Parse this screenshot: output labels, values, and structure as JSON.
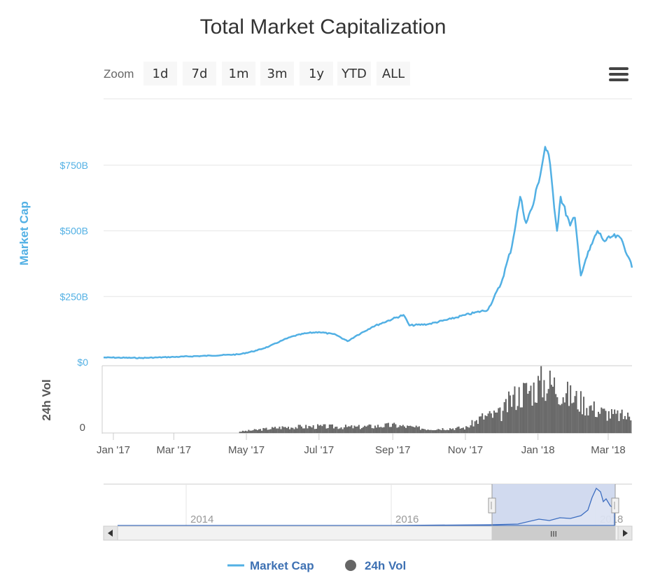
{
  "chart_data": {
    "type": "line",
    "title": "Total Market Capitalization",
    "zoom": {
      "label": "Zoom",
      "buttons": [
        "1d",
        "7d",
        "1m",
        "3m",
        "1y",
        "YTD",
        "ALL"
      ]
    },
    "y_axis": {
      "label": "Market Cap",
      "ticks": [
        "$0",
        "$250B",
        "$500B",
        "$750B"
      ],
      "ylim": [
        0,
        1000
      ]
    },
    "volume_axis": {
      "label": "24h Vol",
      "ticks": [
        "0"
      ]
    },
    "x_axis": {
      "ticks": [
        "Jan '17",
        "Mar '17",
        "May '17",
        "Jul '17",
        "Sep '17",
        "Nov '17",
        "Jan '18",
        "Mar '18"
      ],
      "range": [
        "2017-01-01",
        "2018-03-21"
      ]
    },
    "series": [
      {
        "name": "Market Cap",
        "color": "#52b0e4",
        "x": [
          "2017-01-01",
          "2017-02-01",
          "2017-03-01",
          "2017-04-01",
          "2017-04-25",
          "2017-05-10",
          "2017-05-20",
          "2017-06-01",
          "2017-06-10",
          "2017-06-20",
          "2017-07-01",
          "2017-07-15",
          "2017-07-25",
          "2017-08-01",
          "2017-08-15",
          "2017-09-01",
          "2017-09-10",
          "2017-09-15",
          "2017-10-01",
          "2017-10-20",
          "2017-11-01",
          "2017-11-20",
          "2017-12-01",
          "2017-12-10",
          "2017-12-17",
          "2017-12-22",
          "2017-12-28",
          "2018-01-04",
          "2018-01-07",
          "2018-01-10",
          "2018-01-17",
          "2018-01-20",
          "2018-01-28",
          "2018-02-01",
          "2018-02-06",
          "2018-02-10",
          "2018-02-20",
          "2018-02-26",
          "2018-03-05",
          "2018-03-12",
          "2018-03-18",
          "2018-03-21"
        ],
        "values": [
          18,
          16,
          20,
          25,
          30,
          45,
          60,
          85,
          100,
          110,
          115,
          105,
          80,
          100,
          135,
          165,
          180,
          140,
          145,
          165,
          180,
          200,
          300,
          440,
          630,
          530,
          600,
          740,
          820,
          790,
          500,
          630,
          520,
          550,
          330,
          390,
          500,
          460,
          480,
          470,
          400,
          360
        ]
      },
      {
        "name": "24h Vol",
        "color": "#666666",
        "x": [
          "2017-04-25",
          "2017-06-01",
          "2017-07-01",
          "2017-08-01",
          "2017-09-01",
          "2017-10-01",
          "2017-11-01",
          "2017-11-15",
          "2017-12-01",
          "2017-12-10",
          "2017-12-20",
          "2017-12-28",
          "2018-01-05",
          "2018-01-15",
          "2018-01-25",
          "2018-02-05",
          "2018-02-20",
          "2018-03-05",
          "2018-03-21"
        ],
        "values": [
          2,
          9,
          10,
          9,
          12,
          6,
          8,
          25,
          30,
          55,
          65,
          70,
          80,
          75,
          60,
          50,
          35,
          28,
          25
        ]
      }
    ],
    "navigator": {
      "ticks": [
        "2014",
        "2016",
        "2018"
      ],
      "scrollbar_grip": "III"
    },
    "legend": [
      "Market Cap",
      "24h Vol"
    ]
  }
}
